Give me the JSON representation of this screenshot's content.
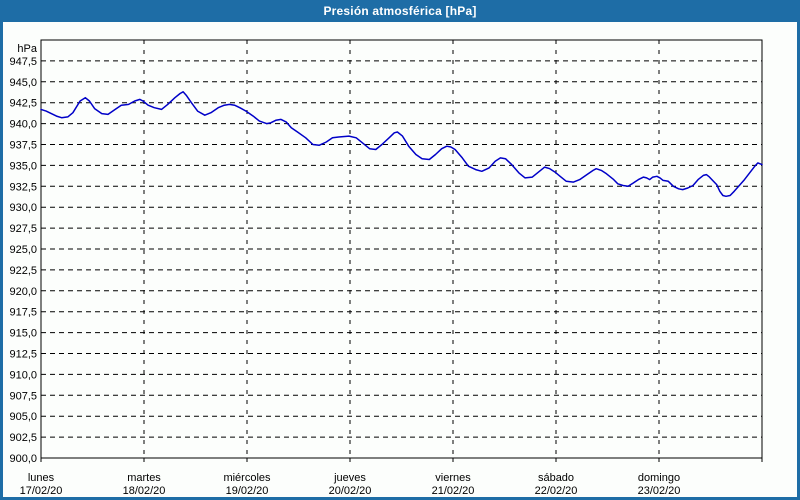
{
  "window": {
    "title": "Presión atmosférica [hPa]"
  },
  "colors": {
    "frame_and_titlebar": "#1e6da6",
    "title_text": "#ffffff",
    "chart_background": "#fcfefc",
    "plot_border": "#000000",
    "grid": "#000000",
    "line": "#0000c8",
    "tick_text": "#000000"
  },
  "chart_data": {
    "type": "line",
    "title": "Presión atmosférica [hPa]",
    "ylabel": "hPa",
    "xlabel": "",
    "ylim": [
      900,
      950
    ],
    "ytick_step": 2.5,
    "ytick_labels": [
      "947,5",
      "945,0",
      "942,5",
      "940,0",
      "937,5",
      "935,0",
      "932,5",
      "930,0",
      "927,5",
      "925,0",
      "922,5",
      "920,0",
      "917,5",
      "915,0",
      "912,5",
      "910,0",
      "907,5",
      "905,0",
      "902,5",
      "900,0"
    ],
    "grid": true,
    "legend": false,
    "x_axis": {
      "unit": "days",
      "range_days": 7,
      "labels": [
        {
          "day": "lunes",
          "date": "17/02/20"
        },
        {
          "day": "martes",
          "date": "18/02/20"
        },
        {
          "day": "miércoles",
          "date": "19/02/20"
        },
        {
          "day": "jueves",
          "date": "20/02/20"
        },
        {
          "day": "viernes",
          "date": "21/02/20"
        },
        {
          "day": "sábado",
          "date": "22/02/20"
        },
        {
          "day": "domingo",
          "date": "23/02/20"
        }
      ]
    },
    "series": [
      {
        "name": "Presión atmosférica",
        "x_days": [
          0,
          0.05,
          0.1,
          0.15,
          0.2,
          0.26,
          0.31,
          0.38,
          0.43,
          0.47,
          0.52,
          0.59,
          0.65,
          0.72,
          0.78,
          0.85,
          0.91,
          0.96,
          0.99,
          1.04,
          1.1,
          1.17,
          1.23,
          1.3,
          1.35,
          1.38,
          1.41,
          1.46,
          1.52,
          1.59,
          1.65,
          1.72,
          1.78,
          1.83,
          1.88,
          1.93,
          1.99,
          2.06,
          2.12,
          2.19,
          2.23,
          2.28,
          2.33,
          2.38,
          2.43,
          2.49,
          2.57,
          2.64,
          2.7,
          2.77,
          2.83,
          2.89,
          2.99,
          3.06,
          3.12,
          3.19,
          3.25,
          3.31,
          3.38,
          3.43,
          3.46,
          3.51,
          3.57,
          3.64,
          3.7,
          3.77,
          3.83,
          3.89,
          3.94,
          3.98,
          4.02,
          4.09,
          4.15,
          4.22,
          4.28,
          4.35,
          4.41,
          4.46,
          4.51,
          4.57,
          4.64,
          4.7,
          4.77,
          4.83,
          4.89,
          4.94,
          4.99,
          5.04,
          5.1,
          5.17,
          5.23,
          5.3,
          5.36,
          5.39,
          5.44,
          5.49,
          5.56,
          5.6,
          5.65,
          5.7,
          5.75,
          5.8,
          5.85,
          5.88,
          5.91,
          5.94,
          5.98,
          6.01,
          6.04,
          6.09,
          6.14,
          6.19,
          6.23,
          6.28,
          6.33,
          6.38,
          6.43,
          6.46,
          6.49,
          6.52,
          6.56,
          6.59,
          6.62,
          6.65,
          6.69,
          6.73,
          6.78,
          6.83,
          6.88,
          6.93,
          6.96,
          7.0
        ],
        "values_hpa": [
          941.7,
          941.5,
          941.2,
          940.9,
          940.7,
          940.8,
          941.3,
          942.7,
          943.1,
          942.7,
          941.8,
          941.2,
          941.1,
          941.7,
          942.2,
          942.3,
          942.7,
          942.9,
          942.7,
          942.2,
          941.9,
          941.7,
          942.3,
          943.1,
          943.6,
          943.8,
          943.4,
          942.5,
          941.5,
          941.0,
          941.3,
          941.9,
          942.2,
          942.3,
          942.2,
          941.9,
          941.5,
          940.9,
          940.3,
          940.0,
          940.1,
          940.4,
          940.5,
          940.2,
          939.5,
          939.0,
          938.3,
          937.5,
          937.4,
          937.8,
          938.3,
          938.4,
          938.5,
          938.3,
          937.7,
          937.0,
          936.9,
          937.5,
          938.3,
          938.9,
          939.0,
          938.5,
          937.3,
          936.3,
          935.8,
          935.7,
          936.3,
          937.0,
          937.3,
          937.2,
          936.9,
          935.9,
          934.9,
          934.5,
          934.3,
          934.7,
          935.5,
          935.9,
          935.8,
          935.1,
          934.1,
          933.5,
          933.6,
          934.2,
          934.8,
          934.6,
          934.2,
          933.7,
          933.1,
          933.0,
          933.3,
          933.9,
          934.4,
          934.6,
          934.4,
          934.0,
          933.3,
          932.8,
          932.6,
          932.5,
          932.9,
          933.3,
          933.6,
          933.5,
          933.3,
          933.6,
          933.7,
          933.5,
          933.2,
          933.1,
          932.5,
          932.2,
          932.1,
          932.3,
          932.6,
          933.3,
          933.8,
          933.9,
          933.6,
          933.2,
          932.7,
          931.9,
          931.4,
          931.3,
          931.4,
          931.9,
          932.6,
          933.3,
          934.1,
          934.9,
          935.3,
          935.1
        ]
      }
    ]
  }
}
